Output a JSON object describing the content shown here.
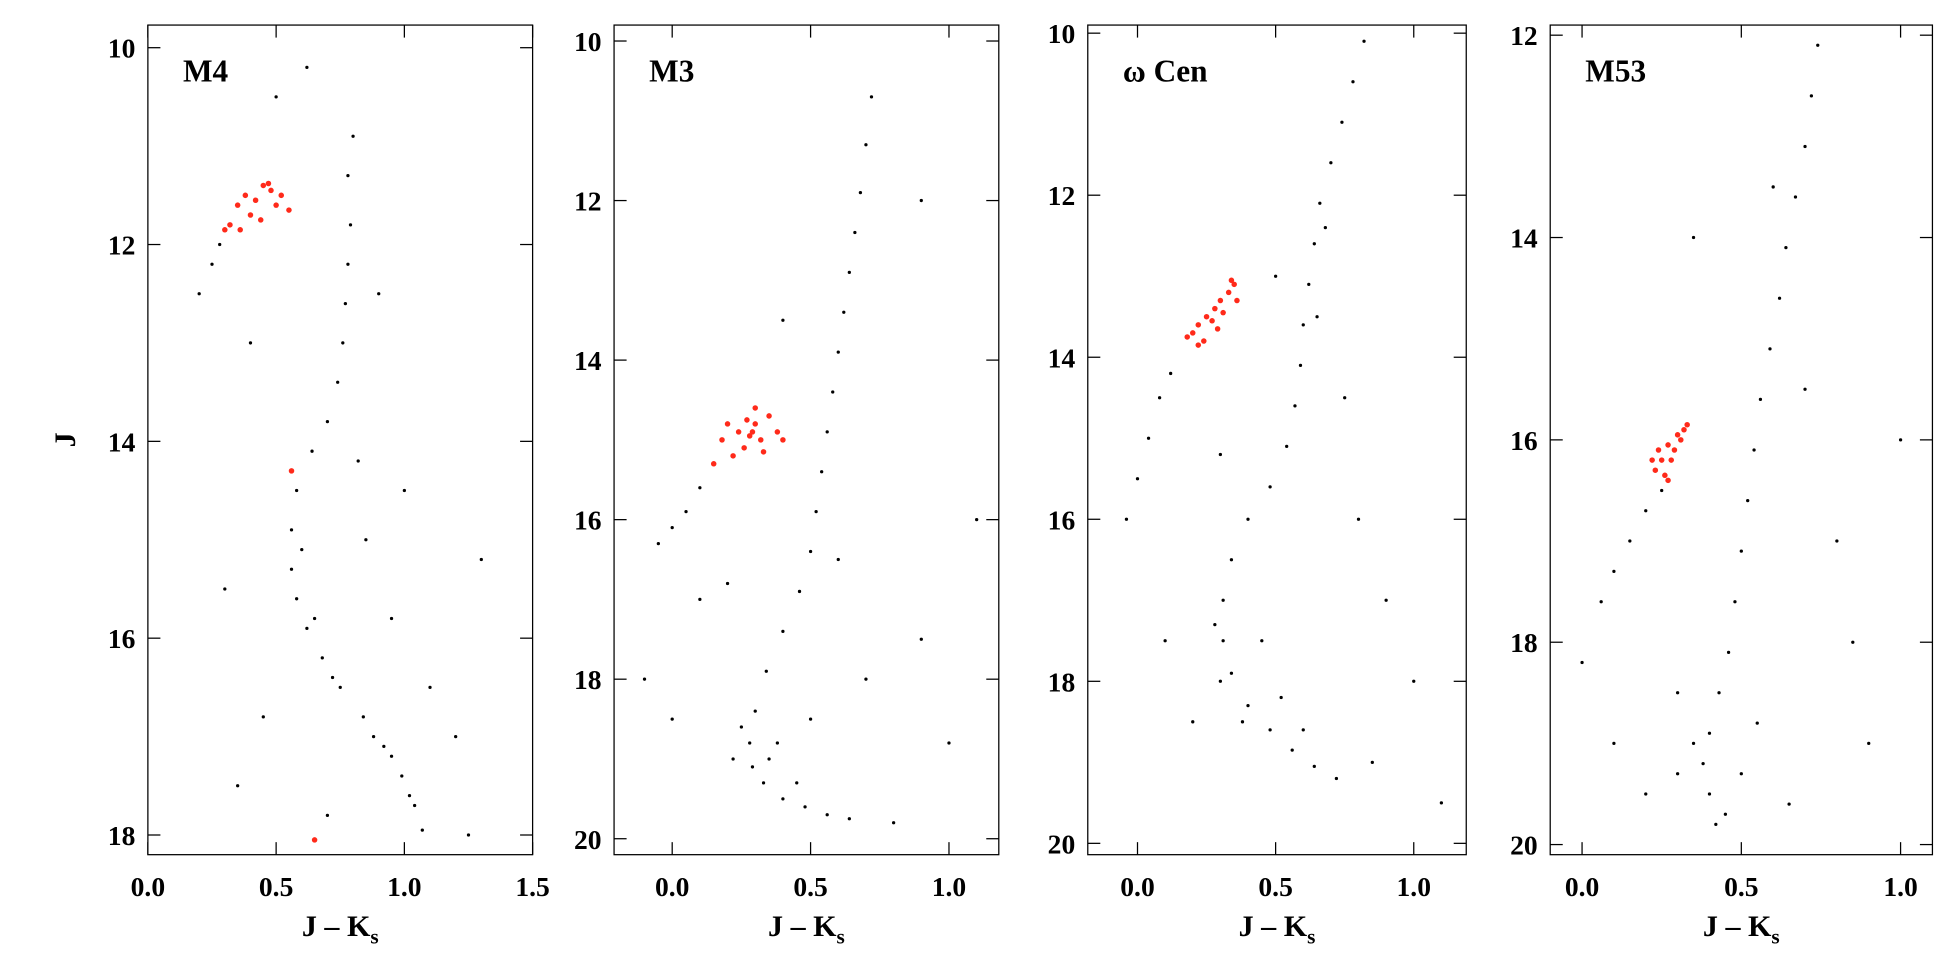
{
  "chart_data": [
    {
      "type": "scatter",
      "title": "M4",
      "y_label": "J",
      "x_label": [
        "J – K",
        "s"
      ],
      "xlim": [
        0,
        1.5
      ],
      "ylim": [
        18.2,
        9.77
      ],
      "xticks": [
        {
          "value": 0,
          "label": "0.0"
        },
        {
          "value": 0.5,
          "label": "0.5"
        },
        {
          "value": 1,
          "label": "1.0"
        },
        {
          "value": 1.5,
          "label": "1.5"
        }
      ],
      "yticks": [
        10,
        12,
        14,
        16,
        18
      ],
      "series": [
        {
          "color": "#000000",
          "x": [
            0.8,
            0.78,
            0.79,
            0.78,
            0.77,
            0.76,
            0.74,
            0.7,
            0.64,
            0.58,
            0.56,
            0.56,
            0.58,
            0.62,
            0.68,
            0.75,
            0.84,
            0.92,
            0.99,
            1.04,
            1.07,
            0.6,
            0.65,
            0.72,
            0.88,
            0.95,
            1.02,
            0.2,
            0.25,
            0.28,
            0.85,
            0.95,
            1.1,
            0.4,
            0.3,
            1.2,
            1.25,
            0.9,
            0.5,
            1.0,
            0.45,
            0.35,
            1.3,
            0.7,
            0.62,
            0.82
          ],
          "values": [
            10.9,
            11.3,
            11.8,
            12.2,
            12.6,
            13.0,
            13.4,
            13.8,
            14.1,
            14.5,
            14.9,
            15.3,
            15.6,
            15.9,
            16.2,
            16.5,
            16.8,
            17.1,
            17.4,
            17.7,
            17.95,
            15.1,
            15.8,
            16.4,
            17.0,
            17.2,
            17.6,
            12.5,
            12.2,
            12.0,
            15.0,
            15.8,
            16.5,
            13.0,
            15.5,
            17.0,
            18.0,
            12.5,
            10.5,
            14.5,
            16.8,
            17.5,
            15.2,
            17.8,
            10.2,
            14.2
          ]
        },
        {
          "color": "#ff2a1a",
          "x": [
            0.32,
            0.35,
            0.38,
            0.4,
            0.42,
            0.45,
            0.48,
            0.5,
            0.52,
            0.36,
            0.44,
            0.55,
            0.3,
            0.47,
            0.65,
            0.56
          ],
          "values": [
            11.8,
            11.6,
            11.5,
            11.7,
            11.55,
            11.4,
            11.45,
            11.6,
            11.5,
            11.85,
            11.75,
            11.65,
            11.85,
            11.38,
            18.05,
            14.3
          ]
        }
      ]
    },
    {
      "type": "scatter",
      "title": "M3",
      "x_label": [
        "J – K",
        "s"
      ],
      "xlim": [
        -0.21,
        1.18
      ],
      "ylim": [
        20.2,
        9.8
      ],
      "xticks": [
        {
          "value": 0,
          "label": "0.0"
        },
        {
          "value": 0.5,
          "label": "0.5"
        },
        {
          "value": 1,
          "label": "1.0"
        }
      ],
      "yticks": [
        10,
        12,
        14,
        16,
        18,
        20
      ],
      "series": [
        {
          "color": "#000000",
          "x": [
            0.72,
            0.7,
            0.68,
            0.66,
            0.64,
            0.62,
            0.6,
            0.58,
            0.56,
            0.54,
            0.52,
            0.5,
            0.46,
            0.4,
            0.34,
            0.3,
            0.28,
            0.29,
            0.33,
            0.4,
            0.48,
            0.56,
            0.64,
            0.25,
            0.35,
            0.45,
            0.22,
            0.38,
            0.05,
            0.1,
            0.0,
            -0.05,
            0.5,
            0.7,
            0.9,
            0.1,
            0.0,
            0.8,
            1.0,
            0.6,
            0.2,
            -0.1,
            0.9,
            0.4,
            1.1
          ],
          "values": [
            10.7,
            11.3,
            11.9,
            12.4,
            12.9,
            13.4,
            13.9,
            14.4,
            14.9,
            15.4,
            15.9,
            16.4,
            16.9,
            17.4,
            17.9,
            18.4,
            18.8,
            19.1,
            19.3,
            19.5,
            19.6,
            19.7,
            19.75,
            18.6,
            19.0,
            19.3,
            19.0,
            18.8,
            15.9,
            15.6,
            16.1,
            16.3,
            18.5,
            18.0,
            17.5,
            17.0,
            18.5,
            19.8,
            18.8,
            16.5,
            16.8,
            18.0,
            12.0,
            13.5,
            16.0
          ]
        },
        {
          "color": "#ff2a1a",
          "x": [
            0.2,
            0.24,
            0.28,
            0.3,
            0.32,
            0.26,
            0.35,
            0.22,
            0.3,
            0.38,
            0.18,
            0.27,
            0.33,
            0.4,
            0.15,
            0.29
          ],
          "values": [
            14.8,
            14.9,
            14.95,
            14.8,
            15.0,
            15.1,
            14.7,
            15.2,
            14.6,
            14.9,
            15.0,
            14.75,
            15.15,
            15.0,
            15.3,
            14.9
          ]
        }
      ]
    },
    {
      "type": "scatter",
      "title": "ω Cen",
      "x_label": [
        "J – K",
        "s"
      ],
      "xlim": [
        -0.18,
        1.19
      ],
      "ylim": [
        20.14,
        9.9
      ],
      "xticks": [
        {
          "value": 0,
          "label": "0.0"
        },
        {
          "value": 0.5,
          "label": "0.5"
        },
        {
          "value": 1,
          "label": "1.0"
        }
      ],
      "yticks": [
        10,
        12,
        14,
        16,
        18,
        20
      ],
      "series": [
        {
          "color": "#000000",
          "x": [
            0.82,
            0.78,
            0.74,
            0.7,
            0.66,
            0.64,
            0.62,
            0.6,
            0.59,
            0.57,
            0.54,
            0.48,
            0.4,
            0.34,
            0.31,
            0.31,
            0.34,
            0.4,
            0.48,
            0.56,
            0.64,
            0.72,
            0.3,
            0.38,
            0.28,
            0.45,
            0.52,
            0.6,
            0.08,
            0.04,
            0.0,
            -0.04,
            0.12,
            0.65,
            0.68,
            0.9,
            1.0,
            0.8,
            0.2,
            0.1,
            1.1,
            0.85,
            0.5,
            0.75,
            0.3
          ],
          "values": [
            10.1,
            10.6,
            11.1,
            11.6,
            12.1,
            12.6,
            13.1,
            13.6,
            14.1,
            14.6,
            15.1,
            15.6,
            16.0,
            16.5,
            17.0,
            17.5,
            17.9,
            18.3,
            18.6,
            18.85,
            19.05,
            19.2,
            18.0,
            18.5,
            17.3,
            17.5,
            18.2,
            18.6,
            14.5,
            15.0,
            15.5,
            16.0,
            14.2,
            13.5,
            12.4,
            17.0,
            18.0,
            16.0,
            18.5,
            17.5,
            19.5,
            19.0,
            13.0,
            14.5,
            15.2
          ]
        },
        {
          "color": "#ff2a1a",
          "x": [
            0.2,
            0.22,
            0.25,
            0.28,
            0.3,
            0.33,
            0.35,
            0.24,
            0.27,
            0.31,
            0.18,
            0.36,
            0.29,
            0.34,
            0.22
          ],
          "values": [
            13.7,
            13.6,
            13.5,
            13.4,
            13.3,
            13.2,
            13.1,
            13.8,
            13.55,
            13.45,
            13.75,
            13.3,
            13.65,
            13.05,
            13.85
          ]
        }
      ]
    },
    {
      "type": "scatter",
      "title": "M53",
      "x_label": [
        "J – K",
        "s"
      ],
      "xlim": [
        -0.1,
        1.1
      ],
      "ylim": [
        20.1,
        11.9
      ],
      "xticks": [
        {
          "value": 0,
          "label": "0.0"
        },
        {
          "value": 0.5,
          "label": "0.5"
        },
        {
          "value": 1,
          "label": "1.0"
        }
      ],
      "yticks": [
        12,
        14,
        16,
        18,
        20
      ],
      "series": [
        {
          "color": "#000000",
          "x": [
            0.74,
            0.72,
            0.7,
            0.67,
            0.64,
            0.62,
            0.59,
            0.56,
            0.54,
            0.52,
            0.5,
            0.48,
            0.46,
            0.43,
            0.4,
            0.38,
            0.4,
            0.45,
            0.35,
            0.3,
            0.5,
            0.42,
            0.55,
            0.2,
            0.15,
            0.1,
            0.06,
            0.25,
            0.3,
            0.8,
            0.9,
            0.2,
            0.7,
            1.0,
            0.0,
            0.6,
            0.35,
            0.85,
            0.65,
            0.1
          ],
          "values": [
            12.1,
            12.6,
            13.1,
            13.6,
            14.1,
            14.6,
            15.1,
            15.6,
            16.1,
            16.6,
            17.1,
            17.6,
            18.1,
            18.5,
            18.9,
            19.2,
            19.5,
            19.7,
            19.0,
            19.3,
            19.3,
            19.8,
            18.8,
            16.7,
            17.0,
            17.3,
            17.6,
            16.5,
            18.5,
            17.0,
            19.0,
            19.5,
            15.5,
            16.0,
            18.2,
            13.5,
            14.0,
            18.0,
            19.6,
            19.0
          ]
        },
        {
          "color": "#ff2a1a",
          "x": [
            0.23,
            0.25,
            0.24,
            0.27,
            0.28,
            0.3,
            0.32,
            0.29,
            0.26,
            0.33,
            0.22,
            0.31,
            0.27
          ],
          "values": [
            16.3,
            16.2,
            16.1,
            16.05,
            16.2,
            15.95,
            15.9,
            16.1,
            16.35,
            15.85,
            16.2,
            16.0,
            16.4
          ]
        }
      ]
    }
  ]
}
